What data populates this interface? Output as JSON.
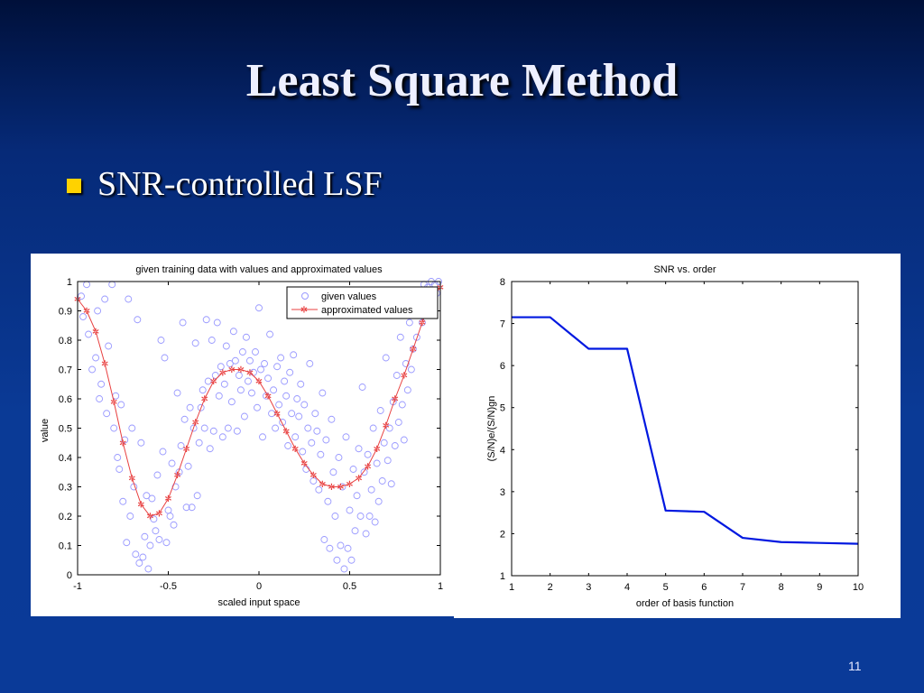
{
  "slide": {
    "title": "Least Square Method",
    "bullet": "SNR-controlled LSF",
    "page_number": "11"
  },
  "colors": {
    "background": "#0a3a96",
    "bullet_marker": "#ffd200",
    "given_points": "#9a9aff",
    "approx_curve": "#e84040",
    "snr_line": "#0018e0"
  },
  "chart_data": [
    {
      "type": "scatter",
      "title": "given training data with values and approximated values",
      "xlabel": "scaled input space",
      "ylabel": "value",
      "xlim": [
        -1,
        1
      ],
      "ylim": [
        0,
        1
      ],
      "x_ticks": [
        "-1",
        "-0.5",
        "0",
        "0.5",
        "1"
      ],
      "y_ticks": [
        "0",
        "0.1",
        "0.2",
        "0.3",
        "0.4",
        "0.5",
        "0.6",
        "0.7",
        "0.8",
        "0.9",
        "1"
      ],
      "legend_position": "top-right",
      "series": [
        {
          "name": "given values",
          "marker": "circle",
          "points": [
            [
              -0.98,
              0.95
            ],
            [
              -0.97,
              0.88
            ],
            [
              -0.95,
              0.99
            ],
            [
              -0.94,
              0.82
            ],
            [
              -0.92,
              0.7
            ],
            [
              -0.9,
              0.74
            ],
            [
              -0.89,
              0.9
            ],
            [
              -0.88,
              0.6
            ],
            [
              -0.87,
              0.65
            ],
            [
              -0.85,
              0.94
            ],
            [
              -0.84,
              0.55
            ],
            [
              -0.83,
              0.78
            ],
            [
              -0.81,
              0.99
            ],
            [
              -0.8,
              0.5
            ],
            [
              -0.79,
              0.61
            ],
            [
              -0.78,
              0.4
            ],
            [
              -0.77,
              0.36
            ],
            [
              -0.76,
              0.58
            ],
            [
              -0.75,
              0.25
            ],
            [
              -0.74,
              0.46
            ],
            [
              -0.73,
              0.11
            ],
            [
              -0.72,
              0.94
            ],
            [
              -0.71,
              0.2
            ],
            [
              -0.7,
              0.5
            ],
            [
              -0.69,
              0.3
            ],
            [
              -0.68,
              0.07
            ],
            [
              -0.67,
              0.87
            ],
            [
              -0.66,
              0.04
            ],
            [
              -0.65,
              0.45
            ],
            [
              -0.64,
              0.06
            ],
            [
              -0.63,
              0.13
            ],
            [
              -0.62,
              0.27
            ],
            [
              -0.61,
              0.02
            ],
            [
              -0.6,
              0.1
            ],
            [
              -0.59,
              0.26
            ],
            [
              -0.58,
              0.19
            ],
            [
              -0.57,
              0.15
            ],
            [
              -0.56,
              0.34
            ],
            [
              -0.55,
              0.12
            ],
            [
              -0.54,
              0.8
            ],
            [
              -0.53,
              0.42
            ],
            [
              -0.52,
              0.74
            ],
            [
              -0.51,
              0.11
            ],
            [
              -0.5,
              0.22
            ],
            [
              -0.49,
              0.2
            ],
            [
              -0.48,
              0.38
            ],
            [
              -0.47,
              0.17
            ],
            [
              -0.46,
              0.3
            ],
            [
              -0.45,
              0.62
            ],
            [
              -0.44,
              0.35
            ],
            [
              -0.43,
              0.44
            ],
            [
              -0.42,
              0.86
            ],
            [
              -0.41,
              0.53
            ],
            [
              -0.4,
              0.23
            ],
            [
              -0.39,
              0.37
            ],
            [
              -0.38,
              0.57
            ],
            [
              -0.37,
              0.23
            ],
            [
              -0.36,
              0.5
            ],
            [
              -0.35,
              0.79
            ],
            [
              -0.34,
              0.27
            ],
            [
              -0.33,
              0.45
            ],
            [
              -0.32,
              0.57
            ],
            [
              -0.31,
              0.63
            ],
            [
              -0.3,
              0.5
            ],
            [
              -0.29,
              0.87
            ],
            [
              -0.28,
              0.66
            ],
            [
              -0.27,
              0.43
            ],
            [
              -0.26,
              0.8
            ],
            [
              -0.25,
              0.49
            ],
            [
              -0.24,
              0.68
            ],
            [
              -0.23,
              0.86
            ],
            [
              -0.22,
              0.61
            ],
            [
              -0.21,
              0.71
            ],
            [
              -0.2,
              0.47
            ],
            [
              -0.19,
              0.65
            ],
            [
              -0.18,
              0.78
            ],
            [
              -0.17,
              0.5
            ],
            [
              -0.16,
              0.72
            ],
            [
              -0.15,
              0.59
            ],
            [
              -0.14,
              0.83
            ],
            [
              -0.13,
              0.73
            ],
            [
              -0.12,
              0.49
            ],
            [
              -0.11,
              0.68
            ],
            [
              -0.1,
              0.63
            ],
            [
              -0.09,
              0.76
            ],
            [
              -0.08,
              0.54
            ],
            [
              -0.07,
              0.81
            ],
            [
              -0.06,
              0.66
            ],
            [
              -0.05,
              0.73
            ],
            [
              -0.04,
              0.62
            ],
            [
              -0.03,
              0.69
            ],
            [
              -0.02,
              0.76
            ],
            [
              -0.01,
              0.57
            ],
            [
              0.0,
              0.91
            ],
            [
              0.01,
              0.7
            ],
            [
              0.02,
              0.47
            ],
            [
              0.03,
              0.72
            ],
            [
              0.04,
              0.61
            ],
            [
              0.05,
              0.67
            ],
            [
              0.06,
              0.82
            ],
            [
              0.07,
              0.55
            ],
            [
              0.08,
              0.63
            ],
            [
              0.09,
              0.5
            ],
            [
              0.1,
              0.71
            ],
            [
              0.11,
              0.58
            ],
            [
              0.12,
              0.74
            ],
            [
              0.13,
              0.52
            ],
            [
              0.14,
              0.66
            ],
            [
              0.15,
              0.61
            ],
            [
              0.16,
              0.44
            ],
            [
              0.17,
              0.69
            ],
            [
              0.18,
              0.55
            ],
            [
              0.19,
              0.75
            ],
            [
              0.2,
              0.47
            ],
            [
              0.21,
              0.6
            ],
            [
              0.22,
              0.54
            ],
            [
              0.23,
              0.65
            ],
            [
              0.24,
              0.42
            ],
            [
              0.25,
              0.58
            ],
            [
              0.26,
              0.36
            ],
            [
              0.27,
              0.5
            ],
            [
              0.28,
              0.72
            ],
            [
              0.29,
              0.45
            ],
            [
              0.3,
              0.32
            ],
            [
              0.31,
              0.55
            ],
            [
              0.32,
              0.49
            ],
            [
              0.33,
              0.29
            ],
            [
              0.34,
              0.41
            ],
            [
              0.35,
              0.62
            ],
            [
              0.36,
              0.12
            ],
            [
              0.37,
              0.46
            ],
            [
              0.38,
              0.25
            ],
            [
              0.39,
              0.09
            ],
            [
              0.4,
              0.53
            ],
            [
              0.41,
              0.35
            ],
            [
              0.42,
              0.2
            ],
            [
              0.43,
              0.05
            ],
            [
              0.44,
              0.4
            ],
            [
              0.45,
              0.1
            ],
            [
              0.46,
              0.3
            ],
            [
              0.47,
              0.02
            ],
            [
              0.48,
              0.47
            ],
            [
              0.49,
              0.09
            ],
            [
              0.5,
              0.22
            ],
            [
              0.51,
              0.05
            ],
            [
              0.52,
              0.36
            ],
            [
              0.53,
              0.15
            ],
            [
              0.54,
              0.27
            ],
            [
              0.55,
              0.43
            ],
            [
              0.56,
              0.2
            ],
            [
              0.57,
              0.64
            ],
            [
              0.58,
              0.35
            ],
            [
              0.59,
              0.14
            ],
            [
              0.6,
              0.41
            ],
            [
              0.61,
              0.2
            ],
            [
              0.62,
              0.29
            ],
            [
              0.63,
              0.5
            ],
            [
              0.64,
              0.18
            ],
            [
              0.65,
              0.38
            ],
            [
              0.66,
              0.25
            ],
            [
              0.67,
              0.56
            ],
            [
              0.68,
              0.32
            ],
            [
              0.69,
              0.45
            ],
            [
              0.7,
              0.74
            ],
            [
              0.71,
              0.39
            ],
            [
              0.72,
              0.5
            ],
            [
              0.73,
              0.31
            ],
            [
              0.74,
              0.59
            ],
            [
              0.75,
              0.44
            ],
            [
              0.76,
              0.68
            ],
            [
              0.77,
              0.52
            ],
            [
              0.78,
              0.81
            ],
            [
              0.79,
              0.58
            ],
            [
              0.8,
              0.46
            ],
            [
              0.81,
              0.72
            ],
            [
              0.82,
              0.63
            ],
            [
              0.83,
              0.86
            ],
            [
              0.84,
              0.7
            ],
            [
              0.85,
              0.77
            ],
            [
              0.86,
              0.92
            ],
            [
              0.87,
              0.81
            ],
            [
              0.88,
              0.89
            ],
            [
              0.89,
              0.97
            ],
            [
              0.9,
              0.86
            ],
            [
              0.91,
              0.99
            ],
            [
              0.92,
              0.93
            ],
            [
              0.93,
              0.98
            ],
            [
              0.94,
              0.95
            ],
            [
              0.95,
              1.0
            ],
            [
              0.96,
              0.97
            ],
            [
              0.97,
              0.99
            ],
            [
              0.98,
              0.96
            ],
            [
              0.99,
              1.0
            ]
          ]
        },
        {
          "name": "approximated values",
          "marker": "star",
          "x": [
            -1.0,
            -0.95,
            -0.9,
            -0.85,
            -0.8,
            -0.75,
            -0.7,
            -0.65,
            -0.6,
            -0.55,
            -0.5,
            -0.45,
            -0.4,
            -0.35,
            -0.3,
            -0.25,
            -0.2,
            -0.15,
            -0.1,
            -0.05,
            0.0,
            0.05,
            0.1,
            0.15,
            0.2,
            0.25,
            0.3,
            0.35,
            0.4,
            0.45,
            0.5,
            0.55,
            0.6,
            0.65,
            0.7,
            0.75,
            0.8,
            0.85,
            0.9,
            0.95,
            1.0
          ],
          "y": [
            0.94,
            0.9,
            0.83,
            0.72,
            0.59,
            0.45,
            0.33,
            0.24,
            0.2,
            0.21,
            0.26,
            0.34,
            0.43,
            0.52,
            0.6,
            0.66,
            0.69,
            0.7,
            0.7,
            0.69,
            0.66,
            0.61,
            0.55,
            0.49,
            0.43,
            0.38,
            0.34,
            0.31,
            0.3,
            0.3,
            0.31,
            0.33,
            0.37,
            0.43,
            0.51,
            0.6,
            0.68,
            0.77,
            0.86,
            0.94,
            0.98
          ]
        }
      ]
    },
    {
      "type": "line",
      "title": "SNR vs. order",
      "xlabel": "order of basis function",
      "ylabel": "(S/N)e/(S/N)gn",
      "xlim": [
        1,
        10
      ],
      "ylim": [
        1,
        8
      ],
      "x_ticks": [
        "1",
        "2",
        "3",
        "4",
        "5",
        "6",
        "7",
        "8",
        "9",
        "10"
      ],
      "y_ticks": [
        "1",
        "2",
        "3",
        "4",
        "5",
        "6",
        "7",
        "8"
      ],
      "x": [
        1,
        2,
        3,
        4,
        5,
        6,
        7,
        8,
        9,
        10
      ],
      "y": [
        7.15,
        7.15,
        6.4,
        6.4,
        2.55,
        2.52,
        1.9,
        1.8,
        1.78,
        1.76
      ]
    }
  ]
}
